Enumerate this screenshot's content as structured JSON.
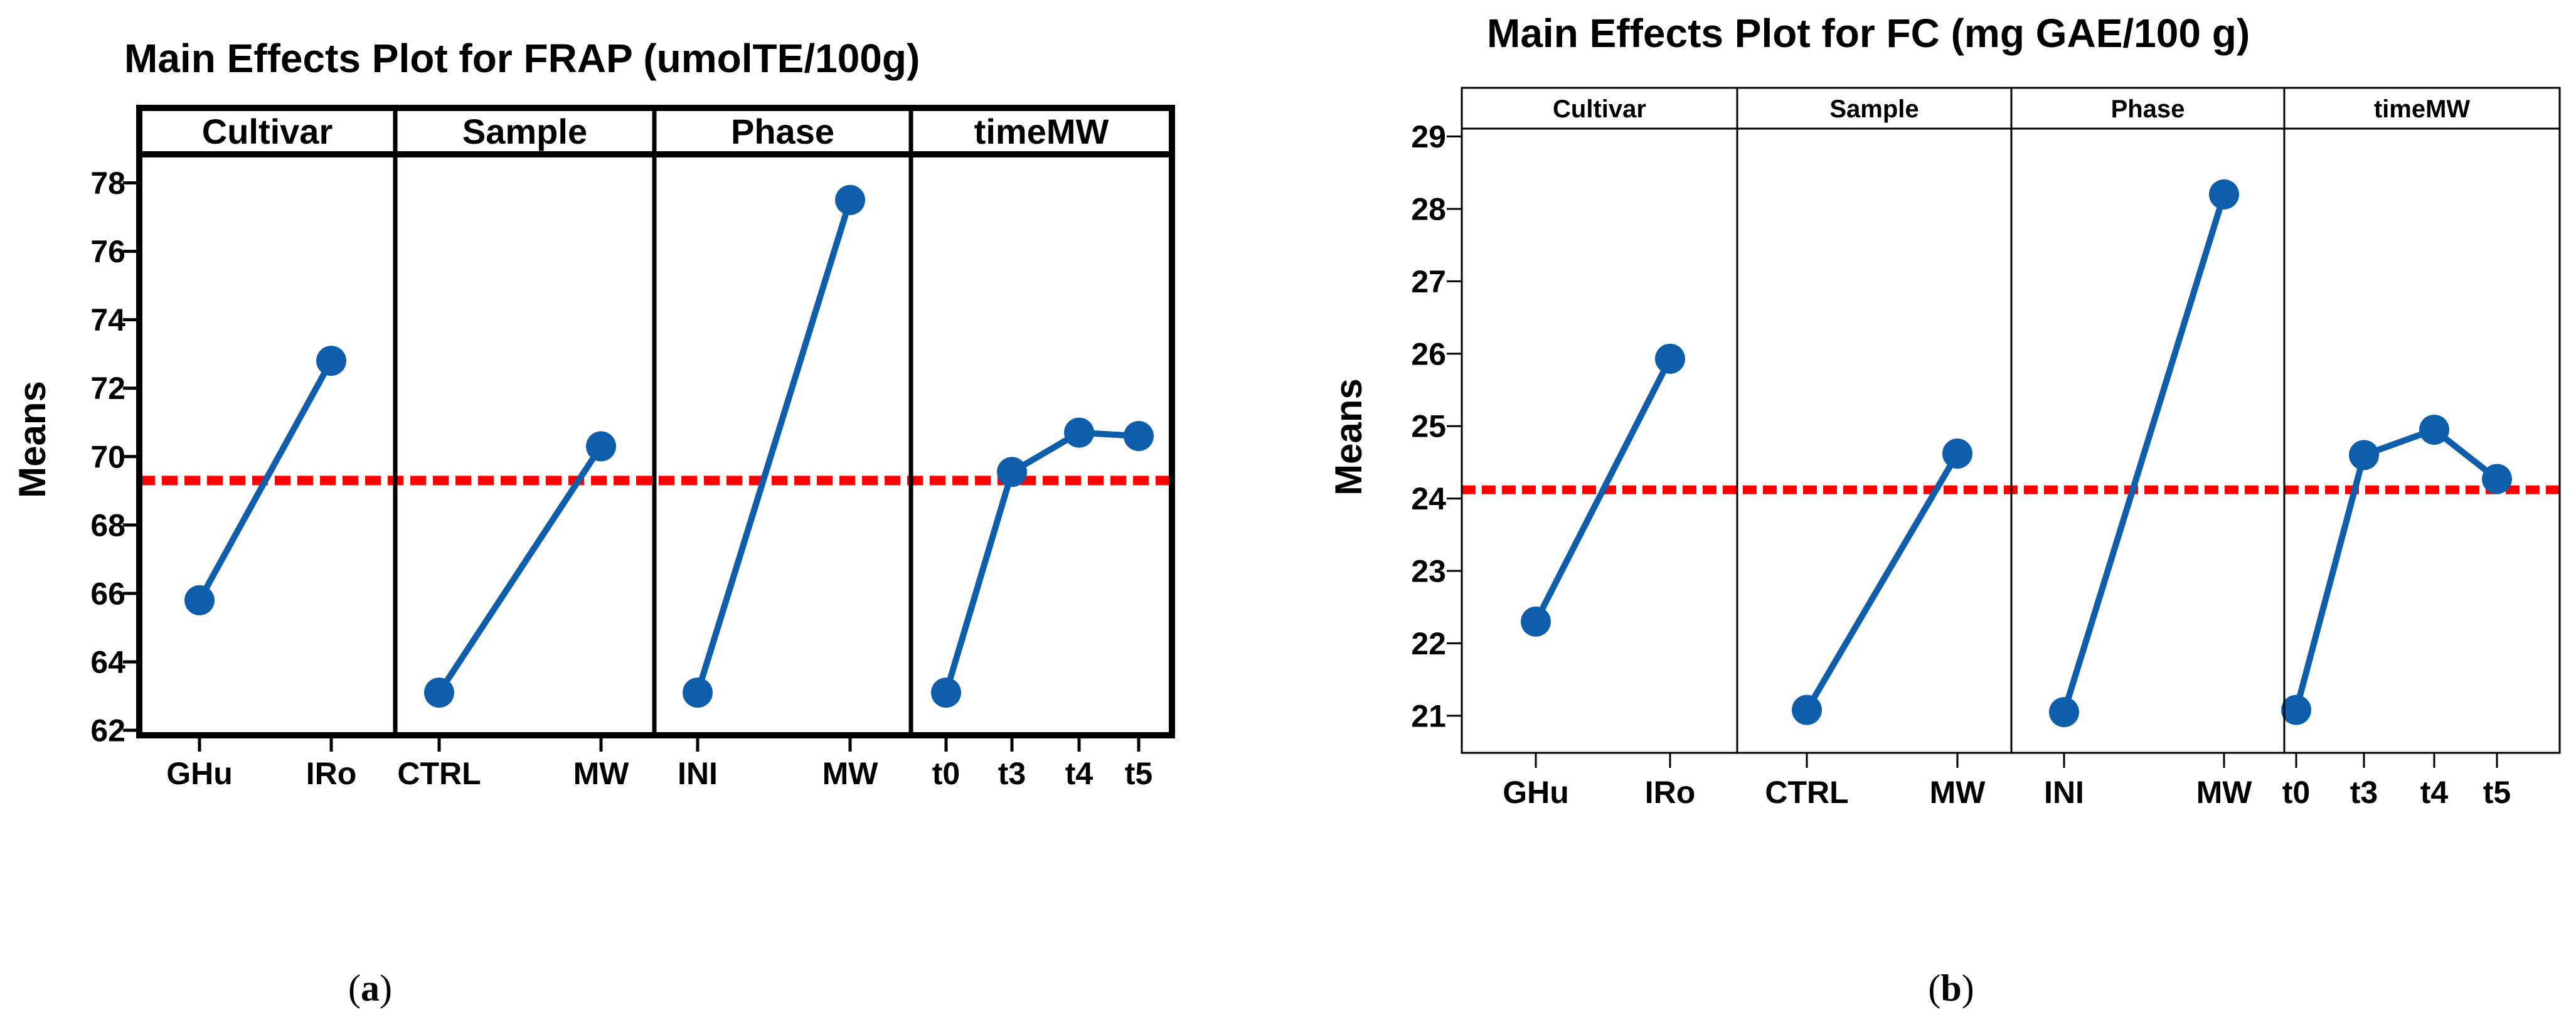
{
  "chart_data": [
    {
      "type": "line",
      "title": "Main Effects Plot for FRAP  (umolTE/100g)",
      "ylabel": "Means",
      "ylim": [
        62,
        79
      ],
      "yticks": [
        62,
        64,
        66,
        68,
        70,
        72,
        74,
        76,
        78
      ],
      "reference_mean": 69.3,
      "caption_prefix": "(",
      "caption": "a",
      "caption_suffix": ")",
      "panels": [
        {
          "factor": "Cultivar",
          "levels": [
            "GHu",
            "IRo"
          ],
          "values": [
            65.8,
            72.8
          ]
        },
        {
          "factor": "Sample",
          "levels": [
            "CTRL",
            "MW"
          ],
          "values": [
            63.1,
            70.3
          ]
        },
        {
          "factor": "Phase",
          "levels": [
            "INI",
            "MW"
          ],
          "values": [
            63.1,
            77.5
          ]
        },
        {
          "factor": "timeMW",
          "levels": [
            "t0",
            "t3",
            "t4",
            "t5"
          ],
          "values": [
            63.1,
            69.55,
            70.7,
            70.6
          ]
        }
      ]
    },
    {
      "type": "line",
      "title": "Main Effects Plot for FC (mg GAE/100 g)",
      "ylabel": "Means",
      "ylim": [
        20.6,
        29.1
      ],
      "yticks": [
        21,
        22,
        23,
        24,
        25,
        26,
        27,
        28,
        29
      ],
      "reference_mean": 24.12,
      "caption_prefix": "(",
      "caption": "b",
      "caption_suffix": ")",
      "panels": [
        {
          "factor": "Cultivar",
          "levels": [
            "GHu",
            "IRo"
          ],
          "values": [
            22.3,
            25.93
          ]
        },
        {
          "factor": "Sample",
          "levels": [
            "CTRL",
            "MW"
          ],
          "values": [
            21.08,
            24.62
          ]
        },
        {
          "factor": "Phase",
          "levels": [
            "INI",
            "MW"
          ],
          "values": [
            21.05,
            28.2
          ]
        },
        {
          "factor": "timeMW",
          "levels": [
            "t0",
            "t3",
            "t4",
            "t5"
          ],
          "values": [
            21.08,
            24.6,
            24.95,
            24.27
          ]
        }
      ]
    }
  ],
  "colors": {
    "series": "#0f5eac",
    "mean_line": "#ff0000",
    "axes": "#000000"
  }
}
